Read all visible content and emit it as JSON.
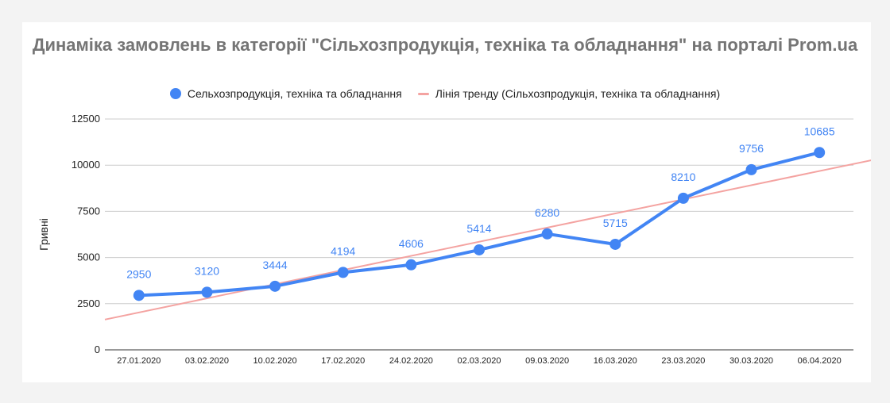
{
  "colors": {
    "series": "#4285f4",
    "trend": "#f4a3a1"
  },
  "chart_data": {
    "type": "line",
    "title": "Динаміка замовлень в категорії \"Сільхозпродукція, техніка та обладнання\" на порталі Prom.ua",
    "ylabel": "Гривні",
    "xlabel": "",
    "legend_position": "top",
    "grid": true,
    "ylim": [
      0,
      12500
    ],
    "yticks": [
      "0",
      "2500",
      "5000",
      "7500",
      "10000",
      "12500"
    ],
    "categories": [
      "27.01.2020",
      "03.02.2020",
      "10.02.2020",
      "17.02.2020",
      "24.02.2020",
      "02.03.2020",
      "09.03.2020",
      "16.03.2020",
      "23.03.2020",
      "30.03.2020",
      "06.04.2020"
    ],
    "series": [
      {
        "name": "Сельхозпродукція, техніка та обладнання",
        "values": [
          2950,
          3120,
          3444,
          4194,
          4606,
          5414,
          6280,
          5715,
          8210,
          9756,
          10685
        ],
        "data_labels": true
      }
    ],
    "trendline": {
      "name": "Лінія тренду (Сільхозпродукція, техніка та обладнання)",
      "type": "linear"
    }
  }
}
